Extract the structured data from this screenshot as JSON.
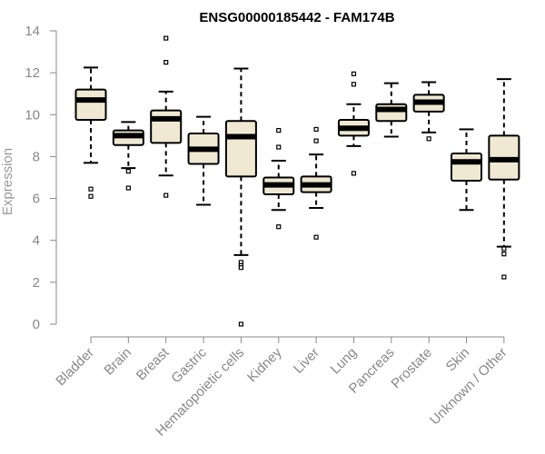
{
  "chart_data": {
    "type": "boxplot",
    "title": "ENSG00000185442 - FAM174B",
    "xlabel": "",
    "ylabel": "Expression",
    "ylim": [
      0,
      14
    ],
    "yticks": [
      0,
      2,
      4,
      6,
      8,
      10,
      12,
      14
    ],
    "grid": false,
    "box_fill": "#efe9d3",
    "line_color": "#000000",
    "categories": [
      "Bladder",
      "Brain",
      "Breast",
      "Gastric",
      "Hematopoietic cells",
      "Kidney",
      "Liver",
      "Lung",
      "Pancreas",
      "Prostate",
      "Skin",
      "Unknown / Other"
    ],
    "boxes": [
      {
        "label": "Bladder",
        "whisker_low": 7.7,
        "q1": 9.75,
        "median": 10.7,
        "q3": 11.2,
        "whisker_high": 12.25,
        "outliers": [
          6.45,
          6.1
        ]
      },
      {
        "label": "Brain",
        "whisker_low": 7.45,
        "q1": 8.55,
        "median": 9.0,
        "q3": 9.25,
        "whisker_high": 9.65,
        "outliers": [
          7.3,
          6.5
        ]
      },
      {
        "label": "Breast",
        "whisker_low": 7.1,
        "q1": 8.65,
        "median": 9.8,
        "q3": 10.2,
        "whisker_high": 11.1,
        "outliers": [
          13.65,
          12.5,
          6.15
        ]
      },
      {
        "label": "Gastric",
        "whisker_low": 5.7,
        "q1": 7.65,
        "median": 8.35,
        "q3": 9.1,
        "whisker_high": 9.9,
        "outliers": []
      },
      {
        "label": "Hematopoietic cells",
        "whisker_low": 3.3,
        "q1": 7.05,
        "median": 8.95,
        "q3": 9.7,
        "whisker_high": 12.2,
        "outliers": [
          2.95,
          2.8,
          2.7,
          0.0
        ]
      },
      {
        "label": "Kidney",
        "whisker_low": 5.45,
        "q1": 6.2,
        "median": 6.65,
        "q3": 7.0,
        "whisker_high": 7.8,
        "outliers": [
          9.25,
          8.45,
          4.65
        ]
      },
      {
        "label": "Liver",
        "whisker_low": 5.55,
        "q1": 6.3,
        "median": 6.65,
        "q3": 7.05,
        "whisker_high": 8.1,
        "outliers": [
          9.3,
          8.75,
          4.15
        ]
      },
      {
        "label": "Lung",
        "whisker_low": 8.5,
        "q1": 9.0,
        "median": 9.35,
        "q3": 9.75,
        "whisker_high": 10.5,
        "outliers": [
          11.95,
          11.45,
          7.2
        ]
      },
      {
        "label": "Pancreas",
        "whisker_low": 8.95,
        "q1": 9.7,
        "median": 10.25,
        "q3": 10.5,
        "whisker_high": 11.5,
        "outliers": []
      },
      {
        "label": "Prostate",
        "whisker_low": 9.15,
        "q1": 10.15,
        "median": 10.6,
        "q3": 10.95,
        "whisker_high": 11.55,
        "outliers": [
          8.85
        ]
      },
      {
        "label": "Skin",
        "whisker_low": 5.45,
        "q1": 6.85,
        "median": 7.75,
        "q3": 8.15,
        "whisker_high": 9.3,
        "outliers": []
      },
      {
        "label": "Unknown / Other",
        "whisker_low": 3.7,
        "q1": 6.9,
        "median": 7.85,
        "q3": 9.0,
        "whisker_high": 11.7,
        "outliers": [
          3.6,
          3.35,
          2.25
        ]
      }
    ]
  }
}
